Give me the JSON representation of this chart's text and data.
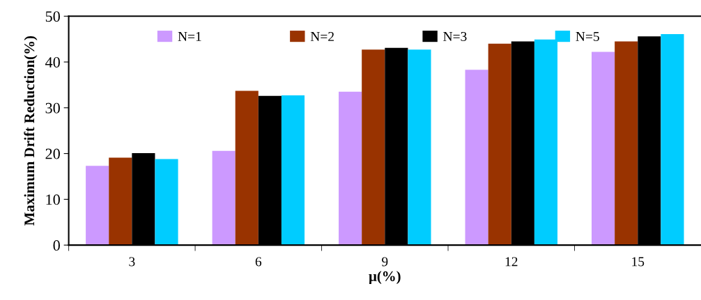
{
  "chart_data": {
    "type": "bar",
    "xlabel": "μ(%)",
    "ylabel": "Maximum Drift Reduction(%)",
    "categories": [
      "3",
      "6",
      "9",
      "12",
      "15"
    ],
    "series": [
      {
        "name": "N=1",
        "color": "#cc99ff",
        "values": [
          17.3,
          20.6,
          33.5,
          38.3,
          42.2
        ]
      },
      {
        "name": "N=2",
        "color": "#993300",
        "values": [
          19.1,
          33.7,
          42.7,
          44.0,
          44.5
        ]
      },
      {
        "name": "N=3",
        "color": "#000000",
        "values": [
          20.1,
          32.6,
          43.1,
          44.5,
          45.6
        ]
      },
      {
        "name": "N=5",
        "color": "#00ccff",
        "values": [
          18.8,
          32.7,
          42.7,
          44.9,
          46.1
        ]
      }
    ],
    "ylim": [
      0,
      50
    ],
    "yticks": [
      0,
      10,
      20,
      30,
      40,
      50
    ],
    "grid": false,
    "legend": "top"
  }
}
